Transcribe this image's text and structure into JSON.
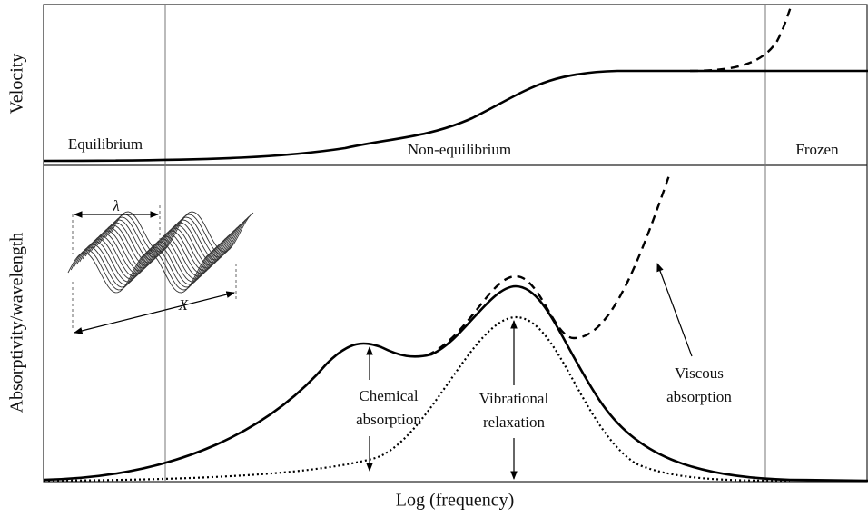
{
  "y_axis_top": "Velocity",
  "y_axis_bottom": "Absorptivity/wavelength",
  "x_axis": "Log (frequency)",
  "regions": [
    "Equilibrium",
    "Non-equilibrium",
    "Frozen"
  ],
  "annotations": [
    {
      "lines": [
        "Chemical",
        "absorption"
      ]
    },
    {
      "lines": [
        "Vibrational",
        "relaxation"
      ]
    },
    {
      "lines": [
        "Viscous",
        "absorption"
      ]
    }
  ],
  "inset": {
    "wavelength_symbol": "λ",
    "distance_symbol": "X"
  }
}
